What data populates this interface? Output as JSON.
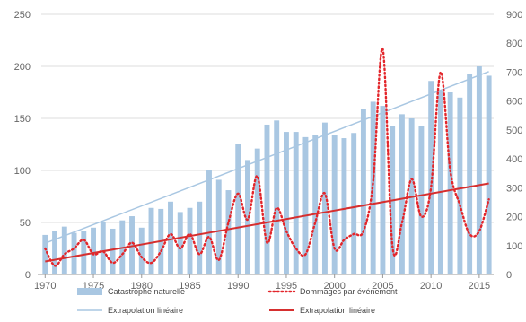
{
  "chart_data": {
    "type": "bar",
    "x": [
      1970,
      1971,
      1972,
      1973,
      1974,
      1975,
      1976,
      1977,
      1978,
      1979,
      1980,
      1981,
      1982,
      1983,
      1984,
      1985,
      1986,
      1987,
      1988,
      1989,
      1990,
      1991,
      1992,
      1993,
      1994,
      1995,
      1996,
      1997,
      1998,
      1999,
      2000,
      2001,
      2002,
      2003,
      2004,
      2005,
      2006,
      2007,
      2008,
      2009,
      2010,
      2011,
      2012,
      2013,
      2014,
      2015,
      2016
    ],
    "x_ticks": [
      "1970",
      "1975",
      "1980",
      "1985",
      "1990",
      "1995",
      "2000",
      "2005",
      "2010",
      "2015"
    ],
    "y_left": {
      "lim": [
        0,
        250
      ],
      "ticks": [
        "0",
        "50",
        "100",
        "150",
        "200",
        "250"
      ]
    },
    "y_right": {
      "lim": [
        0,
        900
      ],
      "ticks": [
        "0",
        "100",
        "200",
        "300",
        "400",
        "500",
        "600",
        "700",
        "800",
        "900"
      ]
    },
    "grid": "horizontal",
    "legend_position": "bottom",
    "series": [
      {
        "name": "Catastrophe naturelle",
        "kind": "bar",
        "axis": "left",
        "color": "#a9c7e2",
        "values": [
          38,
          42,
          46,
          40,
          42,
          45,
          50,
          44,
          52,
          56,
          45,
          64,
          63,
          70,
          60,
          64,
          70,
          100,
          91,
          81,
          125,
          110,
          121,
          144,
          148,
          137,
          137,
          132,
          134,
          146,
          134,
          131,
          136,
          159,
          166,
          162,
          143,
          154,
          150,
          143,
          186,
          176,
          175,
          170,
          193,
          200,
          191
        ]
      },
      {
        "name": "Extrapolation linéaire",
        "kind": "trend",
        "axis": "left",
        "color": "#a9c7e2",
        "start": [
          1970,
          30
        ],
        "end": [
          2016,
          195
        ]
      },
      {
        "name": "Dommages par événement",
        "kind": "dotted-line",
        "axis": "right",
        "color": "#e3262b",
        "values": [
          90,
          30,
          70,
          90,
          120,
          70,
          80,
          40,
          70,
          110,
          60,
          40,
          80,
          140,
          90,
          140,
          70,
          130,
          50,
          180,
          280,
          190,
          340,
          110,
          230,
          150,
          90,
          70,
          180,
          280,
          90,
          120,
          140,
          150,
          320,
          780,
          100,
          180,
          330,
          200,
          300,
          700,
          360,
          240,
          140,
          150,
          260
        ]
      },
      {
        "name": "Extrapolation linéaire",
        "kind": "trend",
        "axis": "right",
        "color": "#d62f2f",
        "start": [
          1970,
          45
        ],
        "end": [
          2016,
          315
        ]
      }
    ]
  }
}
